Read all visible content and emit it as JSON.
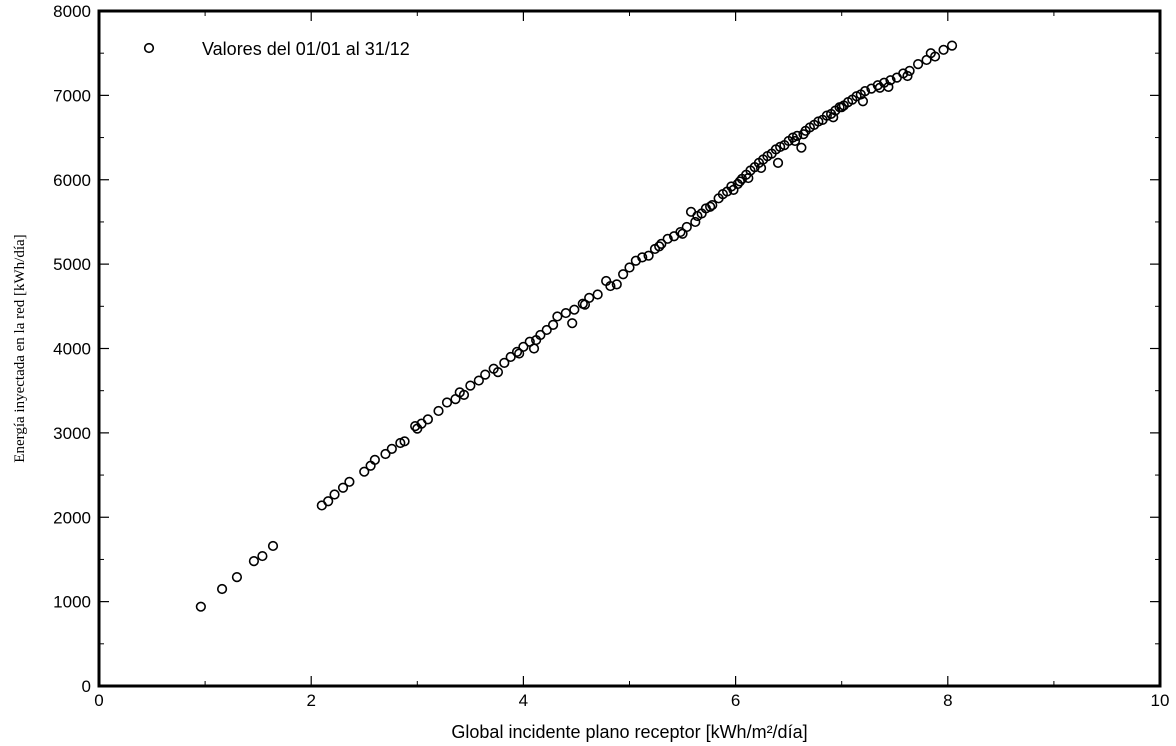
{
  "chart_data": {
    "type": "scatter",
    "title": "",
    "xlabel": "Global incidente plano receptor [kWh/m²/día]",
    "ylabel": "Energía inyectada en la red [kWh/día]",
    "xlim": [
      0,
      10
    ],
    "ylim": [
      0,
      8000
    ],
    "x_ticks": [
      "0",
      "2",
      "4",
      "6",
      "8",
      "10"
    ],
    "y_ticks": [
      "0",
      "1000",
      "2000",
      "3000",
      "4000",
      "5000",
      "6000",
      "7000",
      "8000"
    ],
    "grid": false,
    "legend_position": "top-left",
    "marker": "open-circle",
    "marker_color": "#000000",
    "series": [
      {
        "name": "Valores del 01/01 al 31/12",
        "points": [
          [
            0.96,
            940
          ],
          [
            1.16,
            1150
          ],
          [
            1.3,
            1290
          ],
          [
            1.46,
            1480
          ],
          [
            1.54,
            1540
          ],
          [
            1.64,
            1660
          ],
          [
            2.1,
            2140
          ],
          [
            2.16,
            2190
          ],
          [
            2.22,
            2270
          ],
          [
            2.3,
            2350
          ],
          [
            2.36,
            2420
          ],
          [
            2.5,
            2540
          ],
          [
            2.56,
            2610
          ],
          [
            2.6,
            2680
          ],
          [
            2.7,
            2750
          ],
          [
            2.76,
            2810
          ],
          [
            2.84,
            2880
          ],
          [
            2.88,
            2900
          ],
          [
            2.98,
            3080
          ],
          [
            3.04,
            3110
          ],
          [
            3.1,
            3160
          ],
          [
            3.2,
            3260
          ],
          [
            3.28,
            3360
          ],
          [
            3.36,
            3400
          ],
          [
            3.44,
            3450
          ],
          [
            3.5,
            3560
          ],
          [
            3.58,
            3620
          ],
          [
            3.64,
            3690
          ],
          [
            3.72,
            3760
          ],
          [
            3.76,
            3720
          ],
          [
            3.82,
            3830
          ],
          [
            3.88,
            3900
          ],
          [
            3.94,
            3960
          ],
          [
            4.0,
            4020
          ],
          [
            4.06,
            4080
          ],
          [
            4.1,
            4000
          ],
          [
            4.16,
            4160
          ],
          [
            4.22,
            4220
          ],
          [
            4.28,
            4280
          ],
          [
            4.32,
            4380
          ],
          [
            4.46,
            4300
          ],
          [
            4.48,
            4460
          ],
          [
            4.56,
            4530
          ],
          [
            4.62,
            4600
          ],
          [
            4.7,
            4640
          ],
          [
            4.78,
            4800
          ],
          [
            4.82,
            4740
          ],
          [
            4.88,
            4760
          ],
          [
            4.94,
            4880
          ],
          [
            5.0,
            4960
          ],
          [
            5.06,
            5040
          ],
          [
            5.12,
            5080
          ],
          [
            5.18,
            5100
          ],
          [
            5.24,
            5180
          ],
          [
            5.3,
            5240
          ],
          [
            5.36,
            5300
          ],
          [
            5.42,
            5330
          ],
          [
            5.48,
            5380
          ],
          [
            5.54,
            5440
          ],
          [
            5.58,
            5620
          ],
          [
            5.62,
            5500
          ],
          [
            5.68,
            5600
          ],
          [
            5.72,
            5660
          ],
          [
            5.78,
            5700
          ],
          [
            5.84,
            5780
          ],
          [
            5.88,
            5830
          ],
          [
            5.92,
            5860
          ],
          [
            5.96,
            5920
          ],
          [
            6.02,
            5950
          ],
          [
            6.06,
            6010
          ],
          [
            6.1,
            6060
          ],
          [
            6.14,
            6110
          ],
          [
            6.18,
            6150
          ],
          [
            6.22,
            6200
          ],
          [
            6.26,
            6240
          ],
          [
            6.3,
            6280
          ],
          [
            6.34,
            6310
          ],
          [
            6.38,
            6360
          ],
          [
            6.42,
            6390
          ],
          [
            6.46,
            6410
          ],
          [
            6.5,
            6460
          ],
          [
            6.54,
            6500
          ],
          [
            6.58,
            6520
          ],
          [
            6.62,
            6380
          ],
          [
            6.66,
            6580
          ],
          [
            6.7,
            6620
          ],
          [
            6.74,
            6650
          ],
          [
            6.78,
            6690
          ],
          [
            6.82,
            6710
          ],
          [
            6.86,
            6760
          ],
          [
            6.9,
            6780
          ],
          [
            6.94,
            6820
          ],
          [
            6.98,
            6860
          ],
          [
            7.02,
            6880
          ],
          [
            7.06,
            6920
          ],
          [
            7.1,
            6950
          ],
          [
            7.14,
            6990
          ],
          [
            7.18,
            7010
          ],
          [
            7.22,
            7050
          ],
          [
            7.28,
            7080
          ],
          [
            7.34,
            7120
          ],
          [
            7.4,
            7150
          ],
          [
            7.46,
            7180
          ],
          [
            7.52,
            7210
          ],
          [
            7.58,
            7260
          ],
          [
            7.64,
            7290
          ],
          [
            7.72,
            7370
          ],
          [
            7.8,
            7420
          ],
          [
            7.88,
            7460
          ],
          [
            7.96,
            7540
          ],
          [
            8.04,
            7590
          ],
          [
            4.4,
            4420
          ],
          [
            4.58,
            4520
          ],
          [
            5.5,
            5360
          ],
          [
            5.76,
            5680
          ],
          [
            5.98,
            5880
          ],
          [
            6.24,
            6140
          ],
          [
            6.4,
            6200
          ],
          [
            6.64,
            6540
          ],
          [
            6.92,
            6740
          ],
          [
            7.2,
            6930
          ],
          [
            7.44,
            7100
          ],
          [
            7.62,
            7230
          ],
          [
            3.96,
            3940
          ],
          [
            4.12,
            4100
          ],
          [
            3.4,
            3480
          ],
          [
            3.0,
            3050
          ],
          [
            5.28,
            5210
          ],
          [
            6.12,
            6020
          ],
          [
            6.56,
            6460
          ],
          [
            7.0,
            6860
          ],
          [
            7.36,
            7090
          ],
          [
            7.84,
            7500
          ],
          [
            6.04,
            5980
          ],
          [
            5.64,
            5570
          ]
        ]
      }
    ]
  }
}
